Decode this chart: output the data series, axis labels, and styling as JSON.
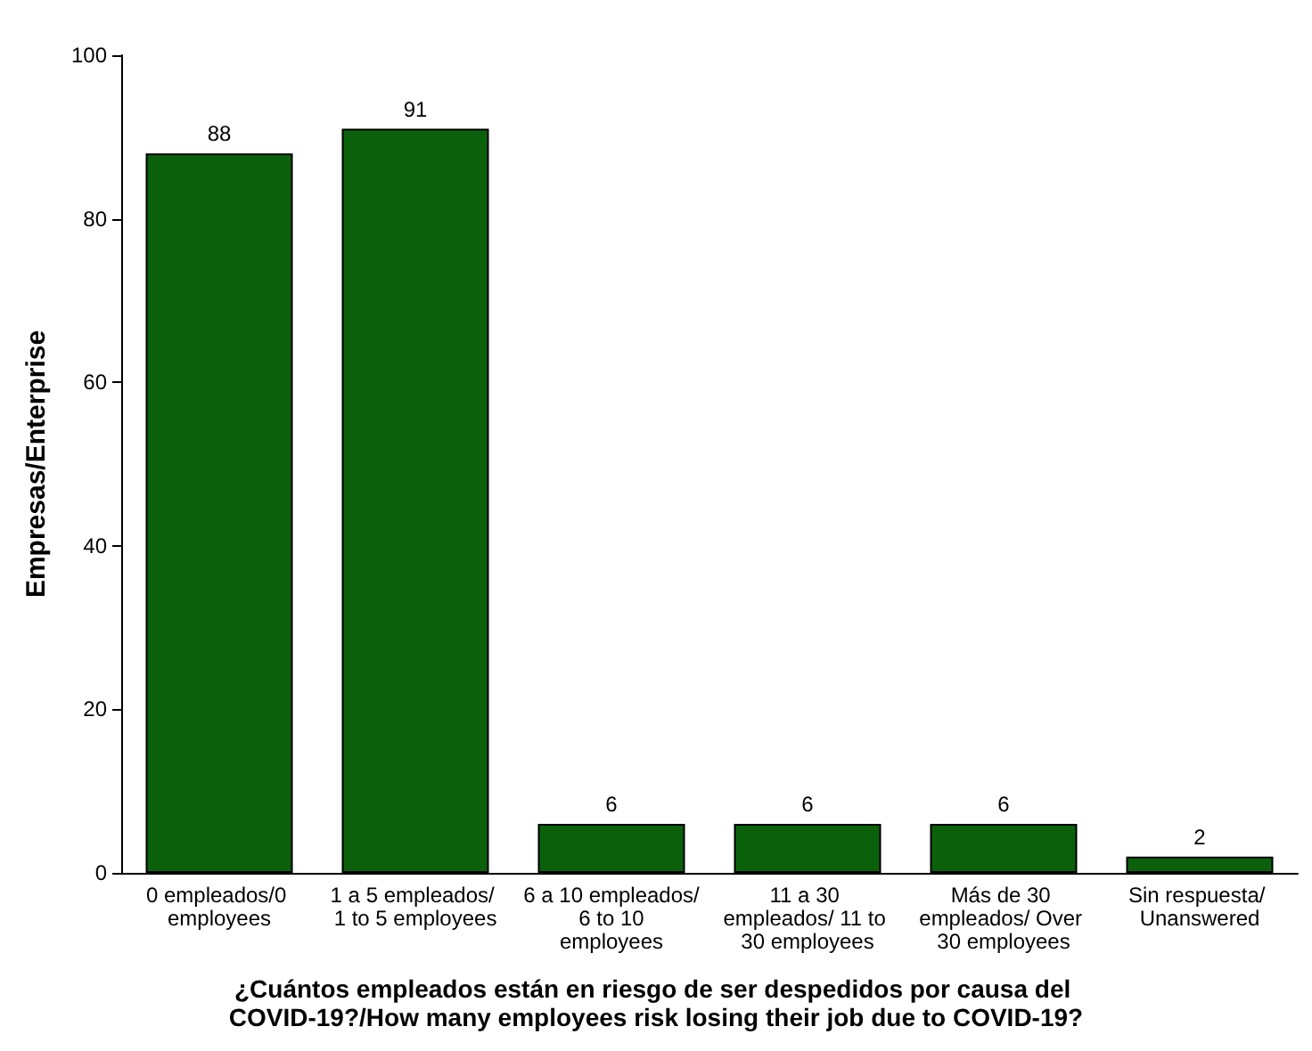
{
  "chart_data": {
    "type": "bar",
    "xlabel": "¿Cuántos empleados están en riesgo de ser despedidos por causa del COVID-19?/How many employees risk losing their job due to COVID-19?",
    "ylabel": "Empresas/Enterprise",
    "categories": [
      "0 empleados/0 employees",
      "1 a 5 empleados/ 1 to 5 employees",
      "6 a 10 empleados/ 6 to 10 employees",
      "11 a 30 empleados/ 11 to 30 employees",
      "Más de 30 empleados/ Over 30 employees",
      "Sin respuesta/ Unanswered"
    ],
    "values": [
      88,
      91,
      6,
      6,
      6,
      2
    ],
    "color": "#0b610b",
    "ylim": [
      0,
      100
    ],
    "yticks": [
      0,
      20,
      40,
      60,
      80,
      100
    ],
    "data_labels": true,
    "grid": false
  }
}
